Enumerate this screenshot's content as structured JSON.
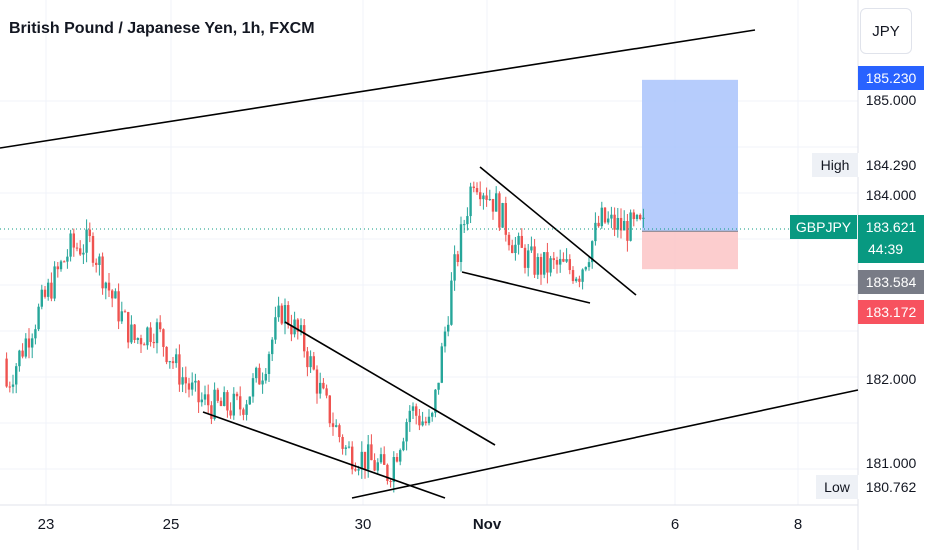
{
  "header": {
    "title": "British Pound / Japanese Yen, 1h, FXCM",
    "currency_button": "JPY"
  },
  "price_axis": {
    "labels": [
      "185.000",
      "184.000",
      "182.000",
      "181.000"
    ]
  },
  "tags": {
    "target_price": "185.230",
    "high_label": "High",
    "high_value": "184.290",
    "symbol": "GBPJPY",
    "last_price": "183.621",
    "countdown": "44:39",
    "entry_price": "183.584",
    "stop_price": "183.172",
    "low_label": "Low",
    "low_value": "180.762"
  },
  "time_axis": {
    "labels": [
      "23",
      "25",
      "30",
      "Nov",
      "6",
      "8"
    ]
  },
  "colors": {
    "up": "#26a69a",
    "down": "#ef5350",
    "profit_zone": "#a9c3fb",
    "loss_zone": "#fbc4c6",
    "target_tag": "#2962ff",
    "last_tag": "#089981",
    "entry_tag": "#787b86",
    "stop_tag": "#f7525f"
  },
  "chart_data": {
    "type": "candlestick",
    "title": "British Pound / Japanese Yen, 1h, FXCM",
    "symbol": "GBPJPY",
    "timeframe": "1h",
    "ylim": [
      180.65,
      185.6
    ],
    "x_ticks": [
      "23",
      "25",
      "30",
      "Nov",
      "6",
      "8"
    ],
    "y_ticks": [
      185.0,
      184.0,
      182.0,
      181.0
    ],
    "high": 184.29,
    "low": 180.762,
    "last": 183.621,
    "long_position": {
      "target": 185.23,
      "entry": 183.584,
      "stop": 183.172
    },
    "price_path": [
      [
        182.2,
        181.6
      ],
      [
        182.3,
        182.6
      ],
      [
        182.9,
        183.0
      ],
      [
        183.3,
        183.5
      ],
      [
        183.6,
        183.3
      ],
      [
        183.1,
        182.6
      ],
      [
        182.5,
        182.3
      ],
      [
        182.6,
        182.5
      ],
      [
        182.3,
        181.9
      ],
      [
        181.7,
        181.8
      ],
      [
        181.65,
        181.7
      ],
      [
        181.75,
        181.6
      ],
      [
        181.7,
        182.4
      ],
      [
        182.7,
        182.8
      ],
      [
        182.6,
        182.1
      ],
      [
        181.9,
        181.5
      ],
      [
        181.3,
        181.1
      ],
      [
        181.2,
        181.0
      ],
      [
        180.9,
        181.0
      ],
      [
        181.8,
        181.5
      ],
      [
        181.3,
        181.6
      ],
      [
        182.5,
        183.6
      ],
      [
        184.1,
        184.3
      ],
      [
        184.1,
        183.7
      ],
      [
        183.6,
        183.2
      ],
      [
        183.0,
        183.4
      ],
      [
        183.1,
        183.3
      ],
      [
        183.2,
        183.1
      ],
      [
        183.6,
        183.8
      ],
      [
        183.7,
        183.55
      ],
      [
        183.6,
        183.621
      ]
    ]
  }
}
